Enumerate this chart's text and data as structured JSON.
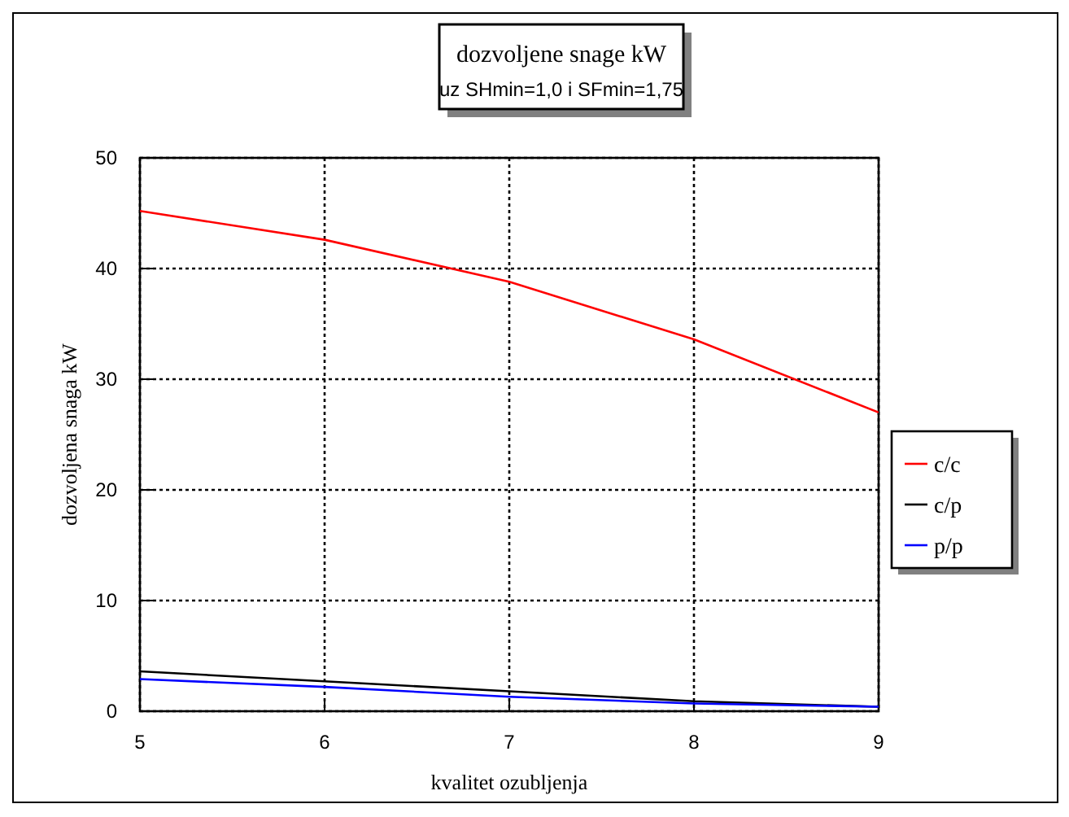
{
  "chart_data": {
    "type": "line",
    "title": "dozvoljene snage kW",
    "subtitle": "uz SHmin=1,0 i SFmin=1,75",
    "xlabel": "kvalitet ozubljenja",
    "ylabel": "dozvoljena snaga kW",
    "x": [
      5,
      6,
      7,
      8,
      9
    ],
    "xlim": [
      5,
      9
    ],
    "xticks": [
      5,
      6,
      7,
      8,
      9
    ],
    "ylim": [
      0,
      50
    ],
    "yticks": [
      0,
      10,
      20,
      30,
      40,
      50
    ],
    "grid": true,
    "legend": "right",
    "marker": "none",
    "line_style": "solid",
    "series": [
      {
        "name": "c/c",
        "color": "#ff0000",
        "values": [
          45.2,
          42.6,
          38.8,
          33.6,
          27.0
        ]
      },
      {
        "name": "c/p",
        "color": "#000000",
        "values": [
          3.6,
          2.7,
          1.8,
          0.9,
          0.4
        ]
      },
      {
        "name": "p/p",
        "color": "#0000ff",
        "values": [
          2.9,
          2.2,
          1.3,
          0.7,
          0.4
        ]
      }
    ]
  }
}
